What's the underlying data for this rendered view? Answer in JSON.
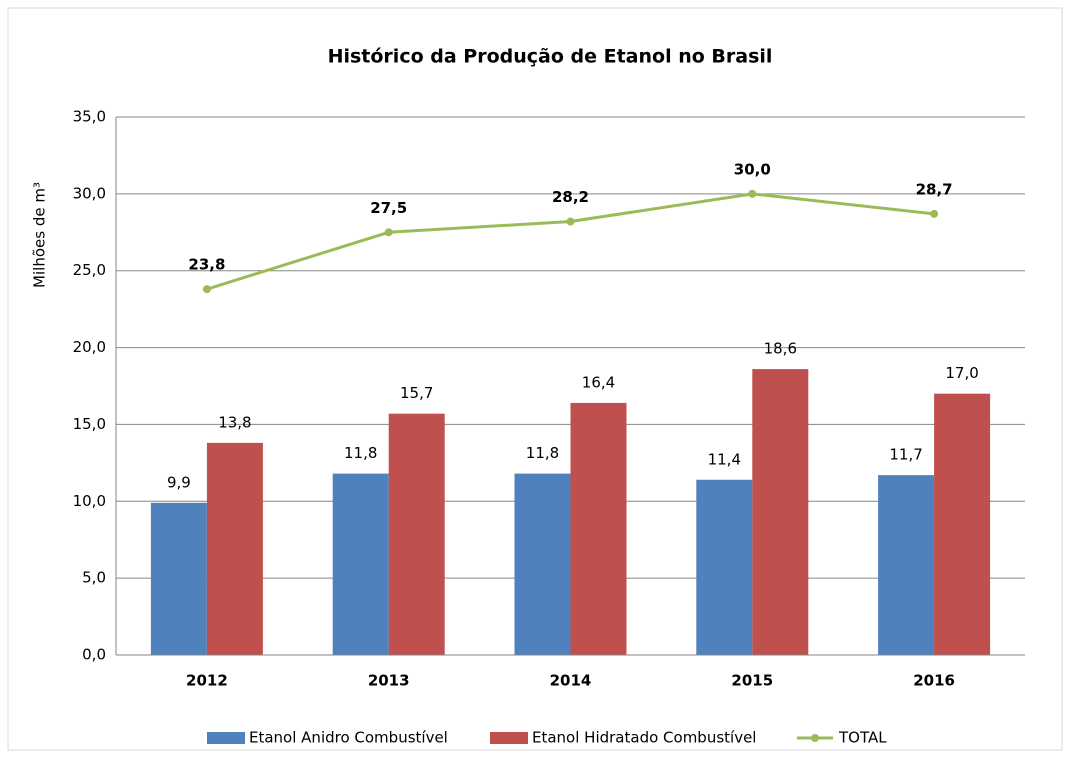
{
  "chart_data": {
    "type": "bar",
    "title": "Histórico da Produção de Etanol no Brasil",
    "y_label": "Milhões de m³",
    "categories": [
      "2012",
      "2013",
      "2014",
      "2015",
      "2016"
    ],
    "series": [
      {
        "name": "Etanol Anidro Combustível",
        "type": "bar",
        "color": "#4f81bd",
        "values": [
          9.9,
          11.8,
          11.8,
          11.4,
          11.7
        ],
        "value_labels": [
          "9,9",
          "11,8",
          "11,8",
          "11,4",
          "11,7"
        ]
      },
      {
        "name": "Etanol Hidratado Combustível",
        "type": "bar",
        "color": "#c0504d",
        "values": [
          13.8,
          15.7,
          16.4,
          18.6,
          17.0
        ],
        "value_labels": [
          "13,8",
          "15,7",
          "16,4",
          "18,6",
          "17,0"
        ]
      },
      {
        "name": "TOTAL",
        "type": "line",
        "color": "#9bbb59",
        "values": [
          23.8,
          27.5,
          28.2,
          30.0,
          28.7
        ],
        "value_labels": [
          "23,8",
          "27,5",
          "28,2",
          "30,0",
          "28,7"
        ]
      }
    ],
    "ylim": [
      0,
      35
    ],
    "yticks": [
      {
        "value": 0,
        "label": "0,0"
      },
      {
        "value": 5,
        "label": "5,0"
      },
      {
        "value": 10,
        "label": "10,0"
      },
      {
        "value": 15,
        "label": "15,0"
      },
      {
        "value": 20,
        "label": "20,0"
      },
      {
        "value": 25,
        "label": "25,0"
      },
      {
        "value": 30,
        "label": "30,0"
      },
      {
        "value": 35,
        "label": "35,0"
      }
    ],
    "grid": true,
    "legend": "bottom"
  }
}
